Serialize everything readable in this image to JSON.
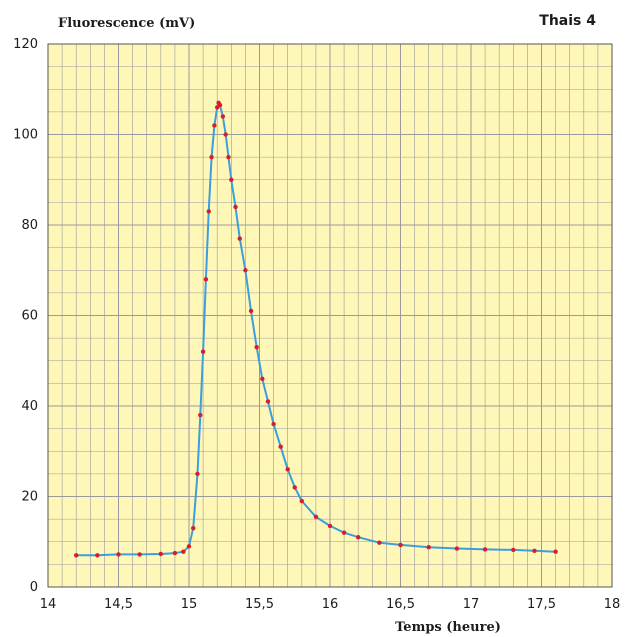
{
  "chart_data": {
    "type": "scatter",
    "title": "Thais 4",
    "ylabel": "Fluorescence (mV)",
    "xlabel": "Temps (heure)",
    "xlim": [
      14,
      18
    ],
    "ylim": [
      0,
      120
    ],
    "x_ticks": [
      "14",
      "14,5",
      "15",
      "15,5",
      "16",
      "16,5",
      "17",
      "17,5",
      "18"
    ],
    "y_ticks": [
      "0",
      "20",
      "40",
      "60",
      "80",
      "100",
      "120"
    ],
    "grid": true,
    "colors": {
      "plot_bg": "#fef7b8",
      "grid": "#9a9a9a",
      "points": "#d81e28",
      "line": "#3a9ee0"
    },
    "series": [
      {
        "x": [
          14.2,
          14.35,
          14.5,
          14.65,
          14.8,
          14.9,
          14.96,
          15.0,
          15.03,
          15.06,
          15.08,
          15.1,
          15.12,
          15.14,
          15.16,
          15.18,
          15.2,
          15.21,
          15.22,
          15.24,
          15.26,
          15.28,
          15.3,
          15.33,
          15.36,
          15.4,
          15.44,
          15.48,
          15.52,
          15.56,
          15.6,
          15.65,
          15.7,
          15.75,
          15.8,
          15.9,
          16.0,
          16.1,
          16.2,
          16.35,
          16.5,
          16.7,
          16.9,
          17.1,
          17.3,
          17.45,
          17.6
        ],
        "y": [
          7,
          7,
          7.2,
          7.2,
          7.3,
          7.5,
          7.8,
          9,
          13,
          25,
          38,
          52,
          68,
          83,
          95,
          102,
          106,
          107,
          106.5,
          104,
          100,
          95,
          90,
          84,
          77,
          70,
          61,
          53,
          46,
          41,
          36,
          31,
          26,
          22,
          19,
          15.5,
          13.5,
          12,
          11,
          9.8,
          9.3,
          8.8,
          8.5,
          8.3,
          8.2,
          8,
          7.8
        ]
      }
    ]
  }
}
